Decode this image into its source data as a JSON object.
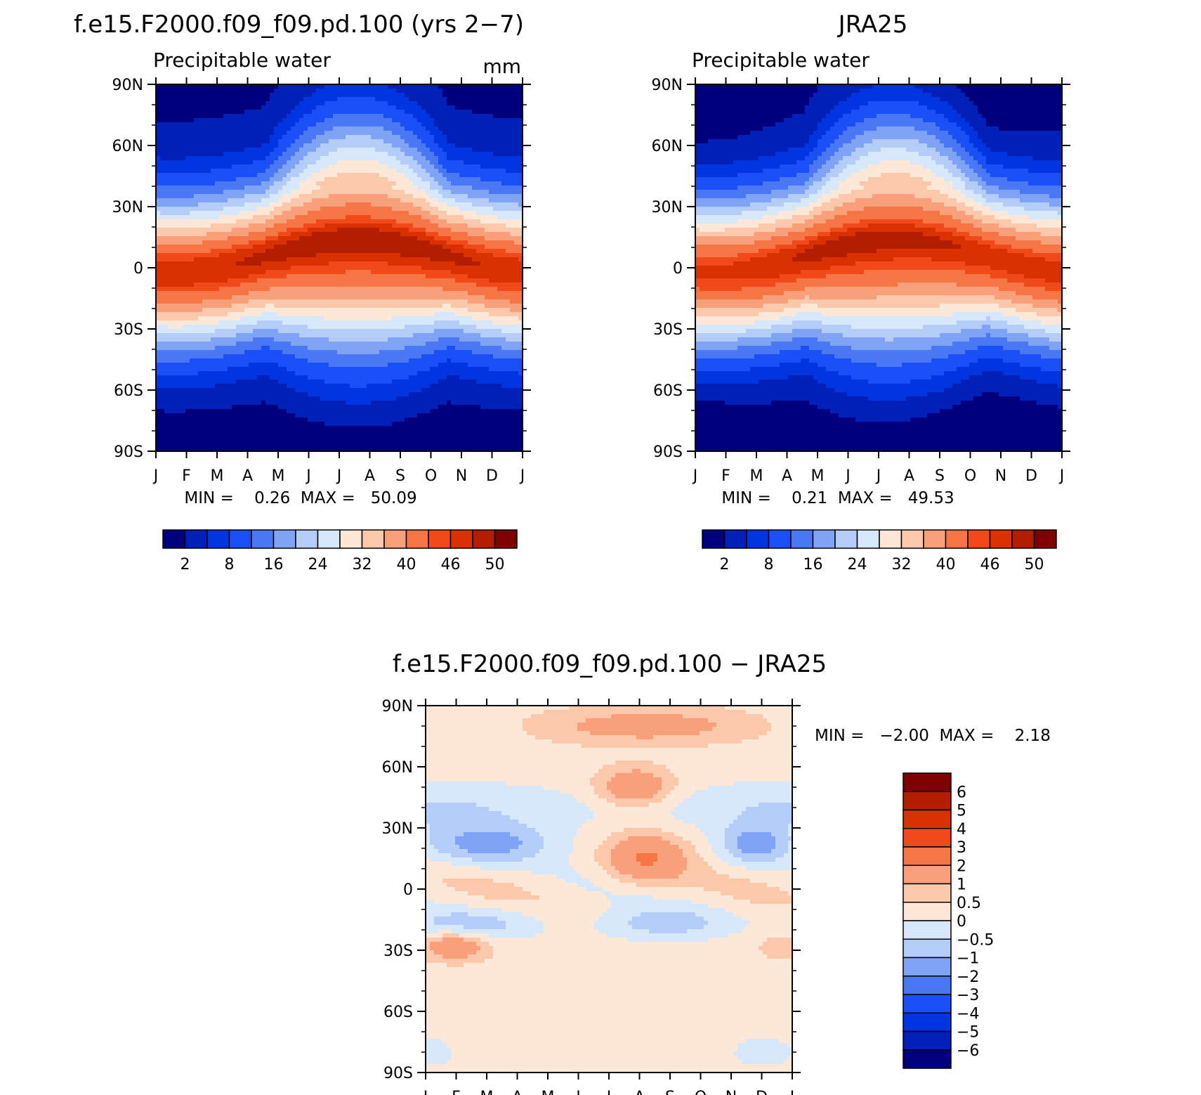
{
  "chart_data": [
    {
      "type": "heatmap",
      "title": "f.e15.F2000.f09_f09.pd.100 (yrs 2−7)",
      "subtitle": "Precipitable water",
      "units": "mm",
      "x_tick_labels": [
        "J",
        "F",
        "M",
        "A",
        "M",
        "J",
        "J",
        "A",
        "S",
        "O",
        "N",
        "D",
        "J"
      ],
      "y_tick_labels": [
        "90N",
        "60N",
        "30N",
        "0",
        "30S",
        "60S",
        "90S"
      ],
      "ylim": [
        -90,
        90
      ],
      "stats_text": "MIN =    0.26  MAX =   50.09",
      "min": 0.26,
      "max": 50.09,
      "colorbar_labels": [
        "2",
        "8",
        "16",
        "24",
        "32",
        "40",
        "46",
        "50"
      ],
      "palette": [
        "#00007f",
        "#0020b8",
        "#0035df",
        "#1a4ff5",
        "#4a78f5",
        "#7fa4f5",
        "#b3ccf8",
        "#d7e8fb",
        "#fde8d8",
        "#fcc8ab",
        "#f9a07a",
        "#f57545",
        "#f04a1a",
        "#d93200",
        "#b31e00",
        "#7f0000"
      ],
      "levels": [
        -40,
        2,
        5,
        8,
        12,
        16,
        20,
        24,
        28,
        32,
        36,
        40,
        44,
        46,
        48,
        50,
        56
      ]
    },
    {
      "type": "heatmap",
      "title": "JRA25",
      "subtitle": "Precipitable water",
      "x_tick_labels": [
        "J",
        "F",
        "M",
        "A",
        "M",
        "J",
        "J",
        "A",
        "S",
        "O",
        "N",
        "D",
        "J"
      ],
      "y_tick_labels": [
        "90N",
        "60N",
        "30N",
        "0",
        "30S",
        "60S",
        "90S"
      ],
      "ylim": [
        -90,
        90
      ],
      "stats_text": "MIN =    0.21  MAX =   49.53",
      "min": 0.21,
      "max": 49.53,
      "colorbar_labels": [
        "2",
        "8",
        "16",
        "24",
        "32",
        "40",
        "46",
        "50"
      ],
      "palette": [
        "#00007f",
        "#0020b8",
        "#0035df",
        "#1a4ff5",
        "#4a78f5",
        "#7fa4f5",
        "#b3ccf8",
        "#d7e8fb",
        "#fde8d8",
        "#fcc8ab",
        "#f9a07a",
        "#f57545",
        "#f04a1a",
        "#d93200",
        "#b31e00",
        "#7f0000"
      ],
      "levels": [
        -40,
        2,
        5,
        8,
        12,
        16,
        20,
        24,
        28,
        32,
        36,
        40,
        44,
        46,
        48,
        50,
        56
      ]
    },
    {
      "type": "heatmap",
      "title": "f.e15.F2000.f09_f09.pd.100 − JRA25",
      "x_tick_labels": [
        "J",
        "F",
        "M",
        "A",
        "M",
        "J",
        "J",
        "A",
        "S",
        "O",
        "N",
        "D",
        "J"
      ],
      "y_tick_labels": [
        "90N",
        "60N",
        "30N",
        "0",
        "30S",
        "60S",
        "90S"
      ],
      "ylim": [
        -90,
        90
      ],
      "stats_text": "MIN =   −2.00  MAX =    2.18",
      "min": -2.0,
      "max": 2.18,
      "colorbar_labels": [
        "6",
        "5",
        "4",
        "3",
        "2",
        "1",
        "0.5",
        "0",
        "−0.5",
        "−1",
        "−2",
        "−3",
        "−4",
        "−5",
        "−6"
      ],
      "palette": [
        "#7f0000",
        "#b31e00",
        "#d93200",
        "#f04a1a",
        "#f57545",
        "#f9a07a",
        "#fcc8ab",
        "#fde8d8",
        "#d7e8fb",
        "#b3ccf8",
        "#7fa4f5",
        "#4a78f5",
        "#1a4ff5",
        "#0035df",
        "#0020b8",
        "#00007f"
      ],
      "levels": [
        99,
        6,
        5,
        4,
        3,
        2,
        1,
        0.5,
        0,
        -0.5,
        -1,
        -2,
        -3,
        -4,
        -5,
        -6,
        -99
      ]
    }
  ]
}
